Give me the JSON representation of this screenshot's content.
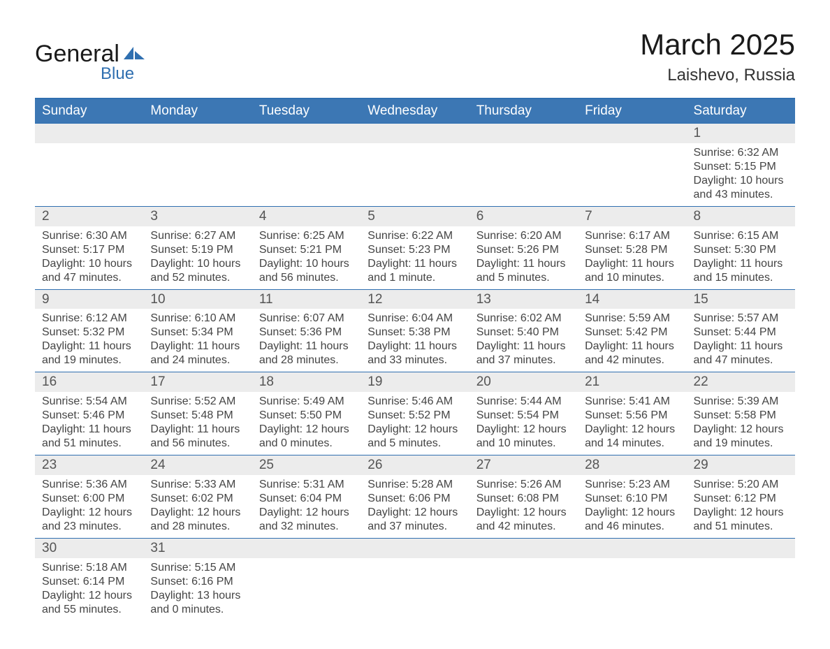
{
  "logo": {
    "word1": "General",
    "word2": "Blue",
    "icon_color": "#2f6fb0"
  },
  "title": "March 2025",
  "location": "Laishevo, Russia",
  "colors": {
    "header_bg": "#3c77b4",
    "header_text": "#ffffff",
    "daynum_bg": "#ececec",
    "border": "#2f6fb0",
    "text": "#444444"
  },
  "day_headers": [
    "Sunday",
    "Monday",
    "Tuesday",
    "Wednesday",
    "Thursday",
    "Friday",
    "Saturday"
  ],
  "weeks": [
    [
      null,
      null,
      null,
      null,
      null,
      null,
      {
        "n": "1",
        "sr": "6:32 AM",
        "ss": "5:15 PM",
        "dl": "10 hours and 43 minutes."
      }
    ],
    [
      {
        "n": "2",
        "sr": "6:30 AM",
        "ss": "5:17 PM",
        "dl": "10 hours and 47 minutes."
      },
      {
        "n": "3",
        "sr": "6:27 AM",
        "ss": "5:19 PM",
        "dl": "10 hours and 52 minutes."
      },
      {
        "n": "4",
        "sr": "6:25 AM",
        "ss": "5:21 PM",
        "dl": "10 hours and 56 minutes."
      },
      {
        "n": "5",
        "sr": "6:22 AM",
        "ss": "5:23 PM",
        "dl": "11 hours and 1 minute."
      },
      {
        "n": "6",
        "sr": "6:20 AM",
        "ss": "5:26 PM",
        "dl": "11 hours and 5 minutes."
      },
      {
        "n": "7",
        "sr": "6:17 AM",
        "ss": "5:28 PM",
        "dl": "11 hours and 10 minutes."
      },
      {
        "n": "8",
        "sr": "6:15 AM",
        "ss": "5:30 PM",
        "dl": "11 hours and 15 minutes."
      }
    ],
    [
      {
        "n": "9",
        "sr": "6:12 AM",
        "ss": "5:32 PM",
        "dl": "11 hours and 19 minutes."
      },
      {
        "n": "10",
        "sr": "6:10 AM",
        "ss": "5:34 PM",
        "dl": "11 hours and 24 minutes."
      },
      {
        "n": "11",
        "sr": "6:07 AM",
        "ss": "5:36 PM",
        "dl": "11 hours and 28 minutes."
      },
      {
        "n": "12",
        "sr": "6:04 AM",
        "ss": "5:38 PM",
        "dl": "11 hours and 33 minutes."
      },
      {
        "n": "13",
        "sr": "6:02 AM",
        "ss": "5:40 PM",
        "dl": "11 hours and 37 minutes."
      },
      {
        "n": "14",
        "sr": "5:59 AM",
        "ss": "5:42 PM",
        "dl": "11 hours and 42 minutes."
      },
      {
        "n": "15",
        "sr": "5:57 AM",
        "ss": "5:44 PM",
        "dl": "11 hours and 47 minutes."
      }
    ],
    [
      {
        "n": "16",
        "sr": "5:54 AM",
        "ss": "5:46 PM",
        "dl": "11 hours and 51 minutes."
      },
      {
        "n": "17",
        "sr": "5:52 AM",
        "ss": "5:48 PM",
        "dl": "11 hours and 56 minutes."
      },
      {
        "n": "18",
        "sr": "5:49 AM",
        "ss": "5:50 PM",
        "dl": "12 hours and 0 minutes."
      },
      {
        "n": "19",
        "sr": "5:46 AM",
        "ss": "5:52 PM",
        "dl": "12 hours and 5 minutes."
      },
      {
        "n": "20",
        "sr": "5:44 AM",
        "ss": "5:54 PM",
        "dl": "12 hours and 10 minutes."
      },
      {
        "n": "21",
        "sr": "5:41 AM",
        "ss": "5:56 PM",
        "dl": "12 hours and 14 minutes."
      },
      {
        "n": "22",
        "sr": "5:39 AM",
        "ss": "5:58 PM",
        "dl": "12 hours and 19 minutes."
      }
    ],
    [
      {
        "n": "23",
        "sr": "5:36 AM",
        "ss": "6:00 PM",
        "dl": "12 hours and 23 minutes."
      },
      {
        "n": "24",
        "sr": "5:33 AM",
        "ss": "6:02 PM",
        "dl": "12 hours and 28 minutes."
      },
      {
        "n": "25",
        "sr": "5:31 AM",
        "ss": "6:04 PM",
        "dl": "12 hours and 32 minutes."
      },
      {
        "n": "26",
        "sr": "5:28 AM",
        "ss": "6:06 PM",
        "dl": "12 hours and 37 minutes."
      },
      {
        "n": "27",
        "sr": "5:26 AM",
        "ss": "6:08 PM",
        "dl": "12 hours and 42 minutes."
      },
      {
        "n": "28",
        "sr": "5:23 AM",
        "ss": "6:10 PM",
        "dl": "12 hours and 46 minutes."
      },
      {
        "n": "29",
        "sr": "5:20 AM",
        "ss": "6:12 PM",
        "dl": "12 hours and 51 minutes."
      }
    ],
    [
      {
        "n": "30",
        "sr": "5:18 AM",
        "ss": "6:14 PM",
        "dl": "12 hours and 55 minutes."
      },
      {
        "n": "31",
        "sr": "5:15 AM",
        "ss": "6:16 PM",
        "dl": "13 hours and 0 minutes."
      },
      null,
      null,
      null,
      null,
      null
    ]
  ],
  "labels": {
    "sunrise": "Sunrise: ",
    "sunset": "Sunset: ",
    "daylight": "Daylight: "
  }
}
